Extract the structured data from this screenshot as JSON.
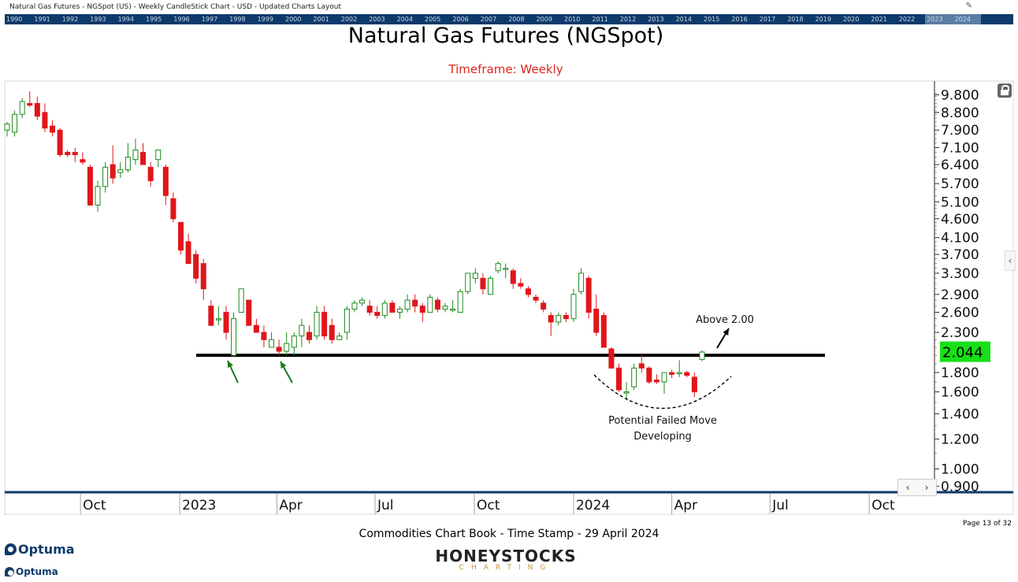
{
  "window": {
    "caption": "Natural Gas Futures - NGSpot (US) - Weekly CandleStick Chart - USD - Updated Charts Layout"
  },
  "timeline": {
    "years": [
      "1990",
      "1991",
      "1992",
      "1993",
      "1994",
      "1995",
      "1996",
      "1997",
      "1998",
      "1999",
      "2000",
      "2001",
      "2002",
      "2003",
      "2004",
      "2005",
      "2006",
      "2007",
      "2008",
      "2009",
      "2010",
      "2011",
      "2012",
      "2013",
      "2014",
      "2015",
      "2016",
      "2017",
      "2018",
      "2019",
      "2020",
      "2021",
      "2022",
      "2023",
      "2024"
    ],
    "highlight_years": [
      "2023",
      "2024"
    ]
  },
  "colors": {
    "up": "#1e8a1e",
    "down": "#e0161b",
    "title_sub": "#e0251b",
    "price_label_bg": "#18e018",
    "timeline_bg": "#0d3a6b",
    "annotation_arrow": "#1c7a1c"
  },
  "chart_data": {
    "type": "candlestick",
    "title": "Natural Gas Futures (NGSpot)",
    "subtitle": "Timeframe: Weekly",
    "scale": "log",
    "ylim": [
      0.88,
      10.4
    ],
    "y_ticks": [
      "9.800",
      "8.800",
      "7.900",
      "7.100",
      "6.400",
      "5.700",
      "5.100",
      "4.600",
      "4.100",
      "3.700",
      "3.300",
      "2.900",
      "2.600",
      "2.300",
      "2.044",
      "1.800",
      "1.600",
      "1.400",
      "1.200",
      "1.000",
      "0.900"
    ],
    "x_date_range": [
      "2022-07-25",
      "2024-11-10"
    ],
    "x_ticks": [
      {
        "label": "Oct",
        "date": "2022-10-01"
      },
      {
        "label": "2023",
        "date": "2023-01-01"
      },
      {
        "label": "Apr",
        "date": "2023-04-01"
      },
      {
        "label": "Jul",
        "date": "2023-07-01"
      },
      {
        "label": "Oct",
        "date": "2023-10-01"
      },
      {
        "label": "2024",
        "date": "2024-01-01"
      },
      {
        "label": "Apr",
        "date": "2024-04-01"
      },
      {
        "label": "Jul",
        "date": "2024-07-01"
      },
      {
        "label": "Oct",
        "date": "2024-10-01"
      }
    ],
    "last_price": "2.044",
    "support_level": 2.0,
    "candles": [
      {
        "date": "2022-07-25",
        "o": 7.9,
        "h": 8.3,
        "l": 7.6,
        "c": 8.2
      },
      {
        "date": "2022-08-01",
        "o": 7.8,
        "h": 8.9,
        "l": 7.6,
        "c": 8.7
      },
      {
        "date": "2022-08-08",
        "o": 8.7,
        "h": 9.6,
        "l": 8.5,
        "c": 9.4
      },
      {
        "date": "2022-08-15",
        "o": 9.3,
        "h": 10.0,
        "l": 9.1,
        "c": 9.2
      },
      {
        "date": "2022-08-22",
        "o": 9.3,
        "h": 9.7,
        "l": 8.4,
        "c": 8.6
      },
      {
        "date": "2022-08-29",
        "o": 8.8,
        "h": 9.3,
        "l": 7.8,
        "c": 8.0
      },
      {
        "date": "2022-09-05",
        "o": 8.1,
        "h": 8.4,
        "l": 7.6,
        "c": 7.8
      },
      {
        "date": "2022-09-12",
        "o": 7.9,
        "h": 8.0,
        "l": 6.7,
        "c": 6.8
      },
      {
        "date": "2022-09-19",
        "o": 6.9,
        "h": 7.0,
        "l": 6.7,
        "c": 6.8
      },
      {
        "date": "2022-09-26",
        "o": 6.9,
        "h": 7.1,
        "l": 6.5,
        "c": 6.8
      },
      {
        "date": "2022-10-03",
        "o": 6.6,
        "h": 6.9,
        "l": 6.4,
        "c": 6.5
      },
      {
        "date": "2022-10-10",
        "o": 6.3,
        "h": 6.4,
        "l": 5.0,
        "c": 5.0
      },
      {
        "date": "2022-10-17",
        "o": 5.0,
        "h": 5.8,
        "l": 4.8,
        "c": 5.6
      },
      {
        "date": "2022-10-24",
        "o": 5.6,
        "h": 6.5,
        "l": 5.4,
        "c": 6.3
      },
      {
        "date": "2022-10-31",
        "o": 6.4,
        "h": 7.2,
        "l": 5.7,
        "c": 5.9
      },
      {
        "date": "2022-11-07",
        "o": 6.1,
        "h": 6.5,
        "l": 5.9,
        "c": 6.2
      },
      {
        "date": "2022-11-14",
        "o": 6.2,
        "h": 7.3,
        "l": 6.1,
        "c": 6.7
      },
      {
        "date": "2022-11-21",
        "o": 6.6,
        "h": 7.5,
        "l": 6.4,
        "c": 7.0
      },
      {
        "date": "2022-11-28",
        "o": 6.9,
        "h": 7.3,
        "l": 6.4,
        "c": 6.4
      },
      {
        "date": "2022-12-05",
        "o": 6.3,
        "h": 6.5,
        "l": 5.6,
        "c": 5.8
      },
      {
        "date": "2022-12-12",
        "o": 6.6,
        "h": 7.0,
        "l": 6.3,
        "c": 7.0
      },
      {
        "date": "2022-12-19",
        "o": 6.3,
        "h": 6.4,
        "l": 5.0,
        "c": 5.3
      },
      {
        "date": "2022-12-26",
        "o": 5.2,
        "h": 5.4,
        "l": 4.5,
        "c": 4.6
      },
      {
        "date": "2023-01-02",
        "o": 4.5,
        "h": 4.5,
        "l": 3.7,
        "c": 3.8
      },
      {
        "date": "2023-01-09",
        "o": 4.0,
        "h": 4.2,
        "l": 3.5,
        "c": 3.5
      },
      {
        "date": "2023-01-16",
        "o": 3.7,
        "h": 3.8,
        "l": 3.1,
        "c": 3.2
      },
      {
        "date": "2023-01-23",
        "o": 3.5,
        "h": 3.6,
        "l": 2.8,
        "c": 3.0
      },
      {
        "date": "2023-01-30",
        "o": 2.7,
        "h": 2.8,
        "l": 2.4,
        "c": 2.4
      },
      {
        "date": "2023-02-06",
        "o": 2.5,
        "h": 2.7,
        "l": 2.4,
        "c": 2.5
      },
      {
        "date": "2023-02-13",
        "o": 2.6,
        "h": 2.7,
        "l": 2.2,
        "c": 2.3
      },
      {
        "date": "2023-02-20",
        "o": 2.0,
        "h": 2.6,
        "l": 1.98,
        "c": 2.5
      },
      {
        "date": "2023-02-27",
        "o": 2.6,
        "h": 3.0,
        "l": 2.6,
        "c": 3.0
      },
      {
        "date": "2023-03-06",
        "o": 2.8,
        "h": 2.8,
        "l": 2.4,
        "c": 2.4
      },
      {
        "date": "2023-03-13",
        "o": 2.4,
        "h": 2.5,
        "l": 2.3,
        "c": 2.3
      },
      {
        "date": "2023-03-20",
        "o": 2.3,
        "h": 2.4,
        "l": 2.1,
        "c": 2.2
      },
      {
        "date": "2023-03-27",
        "o": 2.1,
        "h": 2.3,
        "l": 2.1,
        "c": 2.2
      },
      {
        "date": "2023-04-03",
        "o": 2.1,
        "h": 2.2,
        "l": 2.0,
        "c": 2.05
      },
      {
        "date": "2023-04-10",
        "o": 2.05,
        "h": 2.3,
        "l": 2.0,
        "c": 2.15
      },
      {
        "date": "2023-04-17",
        "o": 2.1,
        "h": 2.3,
        "l": 2.0,
        "c": 2.25
      },
      {
        "date": "2023-04-24",
        "o": 2.25,
        "h": 2.5,
        "l": 2.1,
        "c": 2.4
      },
      {
        "date": "2023-05-01",
        "o": 2.3,
        "h": 2.4,
        "l": 2.15,
        "c": 2.2
      },
      {
        "date": "2023-05-08",
        "o": 2.25,
        "h": 2.7,
        "l": 2.2,
        "c": 2.6
      },
      {
        "date": "2023-05-15",
        "o": 2.6,
        "h": 2.7,
        "l": 2.2,
        "c": 2.25
      },
      {
        "date": "2023-05-22",
        "o": 2.4,
        "h": 2.5,
        "l": 2.15,
        "c": 2.2
      },
      {
        "date": "2023-05-29",
        "o": 2.2,
        "h": 2.3,
        "l": 2.2,
        "c": 2.25
      },
      {
        "date": "2023-06-05",
        "o": 2.3,
        "h": 2.7,
        "l": 2.2,
        "c": 2.65
      },
      {
        "date": "2023-06-12",
        "o": 2.65,
        "h": 2.8,
        "l": 2.6,
        "c": 2.75
      },
      {
        "date": "2023-06-19",
        "o": 2.75,
        "h": 2.85,
        "l": 2.7,
        "c": 2.8
      },
      {
        "date": "2023-06-26",
        "o": 2.7,
        "h": 2.8,
        "l": 2.55,
        "c": 2.6
      },
      {
        "date": "2023-07-03",
        "o": 2.6,
        "h": 2.7,
        "l": 2.5,
        "c": 2.55
      },
      {
        "date": "2023-07-10",
        "o": 2.55,
        "h": 2.8,
        "l": 2.5,
        "c": 2.75
      },
      {
        "date": "2023-07-17",
        "o": 2.75,
        "h": 2.8,
        "l": 2.6,
        "c": 2.6
      },
      {
        "date": "2023-07-24",
        "o": 2.6,
        "h": 2.7,
        "l": 2.5,
        "c": 2.65
      },
      {
        "date": "2023-07-31",
        "o": 2.65,
        "h": 2.9,
        "l": 2.6,
        "c": 2.8
      },
      {
        "date": "2023-08-07",
        "o": 2.8,
        "h": 2.9,
        "l": 2.6,
        "c": 2.7
      },
      {
        "date": "2023-08-14",
        "o": 2.7,
        "h": 2.75,
        "l": 2.45,
        "c": 2.6
      },
      {
        "date": "2023-08-21",
        "o": 2.6,
        "h": 2.9,
        "l": 2.6,
        "c": 2.85
      },
      {
        "date": "2023-08-28",
        "o": 2.8,
        "h": 2.85,
        "l": 2.6,
        "c": 2.65
      },
      {
        "date": "2023-09-04",
        "o": 2.65,
        "h": 2.75,
        "l": 2.6,
        "c": 2.7
      },
      {
        "date": "2023-09-11",
        "o": 2.65,
        "h": 2.8,
        "l": 2.6,
        "c": 2.65
      },
      {
        "date": "2023-09-18",
        "o": 2.6,
        "h": 3.0,
        "l": 2.6,
        "c": 2.95
      },
      {
        "date": "2023-09-25",
        "o": 2.95,
        "h": 3.3,
        "l": 2.9,
        "c": 3.3
      },
      {
        "date": "2023-10-02",
        "o": 3.2,
        "h": 3.4,
        "l": 3.1,
        "c": 3.3
      },
      {
        "date": "2023-10-09",
        "o": 3.2,
        "h": 3.3,
        "l": 2.9,
        "c": 3.0
      },
      {
        "date": "2023-10-16",
        "o": 2.9,
        "h": 3.25,
        "l": 2.9,
        "c": 3.2
      },
      {
        "date": "2023-10-23",
        "o": 3.35,
        "h": 3.55,
        "l": 3.3,
        "c": 3.5
      },
      {
        "date": "2023-10-30",
        "o": 3.4,
        "h": 3.5,
        "l": 3.2,
        "c": 3.4
      },
      {
        "date": "2023-11-06",
        "o": 3.35,
        "h": 3.4,
        "l": 3.0,
        "c": 3.1
      },
      {
        "date": "2023-11-13",
        "o": 3.1,
        "h": 3.2,
        "l": 3.0,
        "c": 3.05
      },
      {
        "date": "2023-11-20",
        "o": 3.0,
        "h": 3.05,
        "l": 2.85,
        "c": 2.9
      },
      {
        "date": "2023-11-27",
        "o": 2.85,
        "h": 2.9,
        "l": 2.75,
        "c": 2.8
      },
      {
        "date": "2023-12-04",
        "o": 2.75,
        "h": 2.8,
        "l": 2.6,
        "c": 2.65
      },
      {
        "date": "2023-12-11",
        "o": 2.55,
        "h": 2.6,
        "l": 2.25,
        "c": 2.45
      },
      {
        "date": "2023-12-18",
        "o": 2.45,
        "h": 2.6,
        "l": 2.4,
        "c": 2.55
      },
      {
        "date": "2023-12-25",
        "o": 2.55,
        "h": 2.6,
        "l": 2.45,
        "c": 2.5
      },
      {
        "date": "2024-01-01",
        "o": 2.5,
        "h": 3.0,
        "l": 2.45,
        "c": 2.9
      },
      {
        "date": "2024-01-08",
        "o": 2.95,
        "h": 3.4,
        "l": 2.9,
        "c": 3.3
      },
      {
        "date": "2024-01-15",
        "o": 3.2,
        "h": 3.25,
        "l": 2.5,
        "c": 2.6
      },
      {
        "date": "2024-01-22",
        "o": 2.65,
        "h": 2.9,
        "l": 2.25,
        "c": 2.3
      },
      {
        "date": "2024-01-29",
        "o": 2.55,
        "h": 2.6,
        "l": 2.1,
        "c": 2.1
      },
      {
        "date": "2024-02-05",
        "o": 2.08,
        "h": 2.1,
        "l": 1.85,
        "c": 1.85
      },
      {
        "date": "2024-02-12",
        "o": 1.85,
        "h": 1.9,
        "l": 1.6,
        "c": 1.62
      },
      {
        "date": "2024-02-19",
        "o": 1.6,
        "h": 1.7,
        "l": 1.52,
        "c": 1.6
      },
      {
        "date": "2024-02-26",
        "o": 1.65,
        "h": 1.9,
        "l": 1.62,
        "c": 1.85
      },
      {
        "date": "2024-03-04",
        "o": 1.9,
        "h": 2.0,
        "l": 1.8,
        "c": 1.85
      },
      {
        "date": "2024-03-11",
        "o": 1.85,
        "h": 1.87,
        "l": 1.68,
        "c": 1.7
      },
      {
        "date": "2024-03-18",
        "o": 1.72,
        "h": 1.78,
        "l": 1.68,
        "c": 1.7
      },
      {
        "date": "2024-03-25",
        "o": 1.7,
        "h": 1.8,
        "l": 1.58,
        "c": 1.8
      },
      {
        "date": "2024-04-01",
        "o": 1.8,
        "h": 1.83,
        "l": 1.74,
        "c": 1.78
      },
      {
        "date": "2024-04-08",
        "o": 1.8,
        "h": 1.94,
        "l": 1.75,
        "c": 1.8
      },
      {
        "date": "2024-04-15",
        "o": 1.8,
        "h": 1.82,
        "l": 1.75,
        "c": 1.77
      },
      {
        "date": "2024-04-22",
        "o": 1.75,
        "h": 1.8,
        "l": 1.55,
        "c": 1.6
      },
      {
        "date": "2024-04-29",
        "o": 1.95,
        "h": 2.06,
        "l": 1.93,
        "c": 2.04
      }
    ],
    "annotations": {
      "above_label": "Above 2.00",
      "failed_move_line1": "Potential Failed Move",
      "failed_move_line2": "Developing"
    }
  },
  "footer": {
    "timestamp": "Commodities Chart Book - Time Stamp - 29 April 2024",
    "page": "Page 13 of 32",
    "brand_main": "HONEYSTOCKS",
    "brand_sub": "CHARTING",
    "optuma_logo": "Optuma"
  }
}
